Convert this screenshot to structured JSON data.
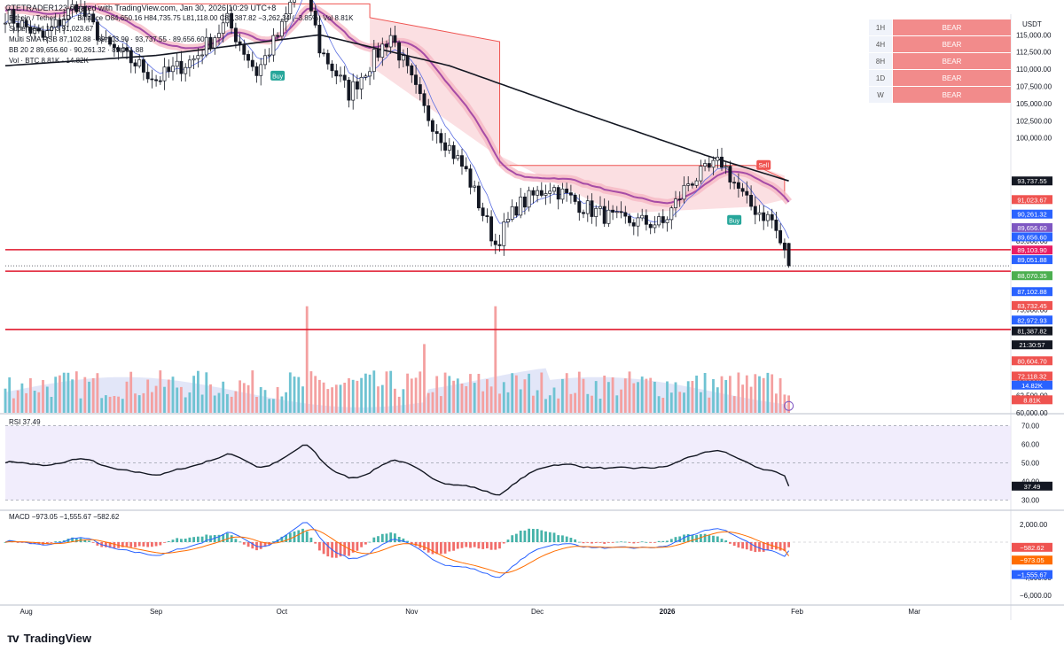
{
  "header": {
    "title": "Bitcoin / Tether · 1D · Binance",
    "ohlc": "O84,650.16 H84,735.75 L81,118.00 C81,387.82 −3,262.34 (−3.85%) Vol 8.81K",
    "created": "CTETRADER123 created with TradingView.com, Jan 30, 2026 10:29 UTC+8"
  },
  "indicators": [
    {
      "label": "Supertrend 10 3",
      "value": "91,023.67"
    },
    {
      "label": "Multi SMA RSB",
      "value": "87,102.88 · 89,103.90 · 93,737.55 · 89,656.60"
    },
    {
      "label": "BB 20 2",
      "value": "89,656.60 · 90,261.32 · 89,051.88"
    },
    {
      "label": "Vol · BTC",
      "value": "8.81K · 14.82K"
    }
  ],
  "mtf": [
    {
      "tf": "1H",
      "state": "BEAR"
    },
    {
      "tf": "4H",
      "state": "BEAR"
    },
    {
      "tf": "8H",
      "state": "BEAR"
    },
    {
      "tf": "1D",
      "state": "BEAR"
    },
    {
      "tf": "W",
      "state": "BEAR"
    }
  ],
  "currency": "USDT",
  "signals": [
    {
      "label": "Buy",
      "date": "2025-09-30",
      "price": 109000,
      "color": "#26a69a"
    },
    {
      "label": "Sell",
      "date": "2026-01-24",
      "price": 96000,
      "color": "#ef5350"
    },
    {
      "label": "Buy",
      "date": "2026-01-17",
      "price": 88000,
      "color": "#26a69a"
    }
  ],
  "price_labels": [
    {
      "text": "93,737.55",
      "price": 93737.55,
      "bg": "#131722"
    },
    {
      "text": "91,023.67",
      "price": 91023.67,
      "bg": "#ef5350"
    },
    {
      "text": "90,261.32",
      "price": 90261.32,
      "bg": "#2962ff"
    },
    {
      "text": "89,656.60",
      "price": 89656.6,
      "bg": "#7e57c2"
    },
    {
      "text": "89,656.60",
      "price": 89656.6,
      "bg": "#2962ff"
    },
    {
      "text": "89,103.90",
      "price": 89103.9,
      "bg": "#e91e63"
    },
    {
      "text": "89,051.88",
      "price": 89051.88,
      "bg": "#2962ff"
    },
    {
      "text": "88,070.35",
      "price": 88070.35,
      "bg": "#4caf50"
    },
    {
      "text": "87,102.88",
      "price": 87102.88,
      "bg": "#2962ff"
    },
    {
      "text": "83,732.45",
      "price": 83732.45,
      "bg": "#ef5350"
    },
    {
      "text": "82,972.93",
      "price": 82972.93,
      "bg": "#2962ff"
    },
    {
      "text": "81,387.82",
      "price": 81387.82,
      "bg": "#131722"
    },
    {
      "text": "21:30:57",
      "price": 80720,
      "bg": "#131722"
    },
    {
      "text": "80,604.70",
      "price": 79750,
      "bg": "#ef5350"
    },
    {
      "text": "72,118.32",
      "price": 72118.32,
      "bg": "#ef5350"
    },
    {
      "text": "14.82K",
      "price": 65380,
      "bg": "#2962ff"
    },
    {
      "text": "8.81K",
      "price": 64600,
      "bg": "#ef5350"
    }
  ],
  "rsi_label": "RSI 37.49",
  "macd_label": "MACD −973.05 −1,555.67 −582.62",
  "macd_labels": [
    {
      "text": "−582.62",
      "value": -582.62,
      "bg": "#ef5350"
    },
    {
      "text": "−973.05",
      "value": -973.05,
      "bg": "#ff6d00"
    },
    {
      "text": "−1,555.67",
      "value": -1555.67,
      "bg": "#2962ff"
    }
  ],
  "chart_data": {
    "type": "candlestick",
    "title": "Bitcoin / Tether · 1D · Binance",
    "x_ticks": [
      "Aug",
      "Sep",
      "Oct",
      "Nov",
      "Dec",
      "2026",
      "Feb",
      "Mar"
    ],
    "tick_dates": [
      "2025-08-01",
      "2025-09-01",
      "2025-10-01",
      "2025-11-01",
      "2025-12-01",
      "2026-01-01",
      "2026-02-01",
      "2026-03-01"
    ],
    "x_range": [
      "2025-07-27",
      "2026-03-24"
    ],
    "price_axis": {
      "ylim": [
        60000,
        118000
      ],
      "ticks": [
        115000,
        112500,
        110000,
        107500,
        105000,
        102500,
        100000,
        85000,
        77500,
        75000,
        70000,
        67500,
        65000,
        62500,
        60000
      ]
    },
    "horizontal_lines": [
      83732.45,
      80604.7,
      72118.32
    ],
    "close_checkpoints": [
      {
        "date": "2025-07-27",
        "close": 118000
      },
      {
        "date": "2025-08-05",
        "close": 114500
      },
      {
        "date": "2025-08-13",
        "close": 119500
      },
      {
        "date": "2025-08-20",
        "close": 113500
      },
      {
        "date": "2025-08-28",
        "close": 110500
      },
      {
        "date": "2025-09-01",
        "close": 108500
      },
      {
        "date": "2025-09-10",
        "close": 111500
      },
      {
        "date": "2025-09-18",
        "close": 117000
      },
      {
        "date": "2025-09-25",
        "close": 109500
      },
      {
        "date": "2025-10-01",
        "close": 116000
      },
      {
        "date": "2025-10-06",
        "close": 124500
      },
      {
        "date": "2025-10-10",
        "close": 113000
      },
      {
        "date": "2025-10-17",
        "close": 106500
      },
      {
        "date": "2025-10-27",
        "close": 115000
      },
      {
        "date": "2025-11-04",
        "close": 104000
      },
      {
        "date": "2025-11-14",
        "close": 95000
      },
      {
        "date": "2025-11-21",
        "close": 84500
      },
      {
        "date": "2025-11-26",
        "close": 90000
      },
      {
        "date": "2025-12-04",
        "close": 93000
      },
      {
        "date": "2025-12-12",
        "close": 90000
      },
      {
        "date": "2025-12-20",
        "close": 88000
      },
      {
        "date": "2025-12-31",
        "close": 87500
      },
      {
        "date": "2026-01-06",
        "close": 93500
      },
      {
        "date": "2026-01-14",
        "close": 96500
      },
      {
        "date": "2026-01-20",
        "close": 90500
      },
      {
        "date": "2026-01-26",
        "close": 88000
      },
      {
        "date": "2026-01-30",
        "close": 81387.82
      }
    ],
    "last_candle": {
      "date": "2026-01-30",
      "open": 84650.16,
      "high": 84735.75,
      "low": 81118.0,
      "close": 81387.82,
      "change": -3262.34,
      "change_pct": -3.85
    },
    "sma_slow": [
      {
        "date": "2025-07-27",
        "value": 110500
      },
      {
        "date": "2025-09-01",
        "value": 112000
      },
      {
        "date": "2025-10-10",
        "value": 115000
      },
      {
        "date": "2025-11-10",
        "value": 110500
      },
      {
        "date": "2025-12-10",
        "value": 104000
      },
      {
        "date": "2026-01-10",
        "value": 97500
      },
      {
        "date": "2026-01-30",
        "value": 93737.55
      }
    ],
    "rsi": {
      "value": 37.49,
      "ylim": [
        25,
        75
      ],
      "ticks": [
        70,
        60,
        50,
        40,
        30
      ]
    },
    "macd": {
      "macd": -973.05,
      "signal": -1555.67,
      "hist": -582.62,
      "ylim": [
        -7000,
        3500
      ],
      "ticks": [
        2000,
        -2000,
        -4000,
        -6000
      ]
    },
    "volume_last": {
      "btc": "8.81K",
      "ma": "14.82K"
    }
  }
}
